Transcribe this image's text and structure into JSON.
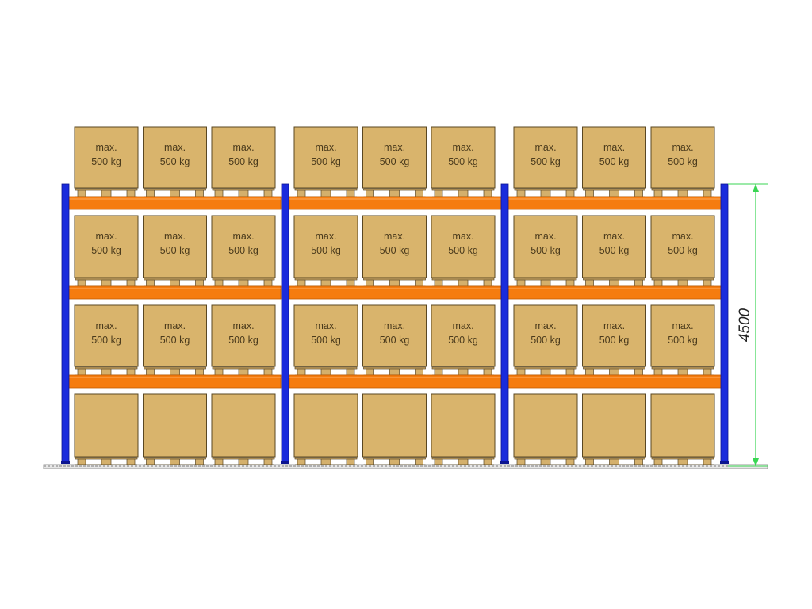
{
  "colors": {
    "upright": "#1a2bdc",
    "beam": "#f57c0f",
    "box_fill": "#d9b46c",
    "box_stroke": "#5a4722",
    "pallet": "#d4b06c",
    "floor": "#9a9a9a",
    "dimension": "#39d653",
    "background": "#ffffff"
  },
  "rack": {
    "bays": 3,
    "levels": 4,
    "boxes_per_bay": 3
  },
  "load_label": {
    "line1": "max.",
    "line2": "500 kg"
  },
  "dimension": {
    "height": "4500"
  }
}
